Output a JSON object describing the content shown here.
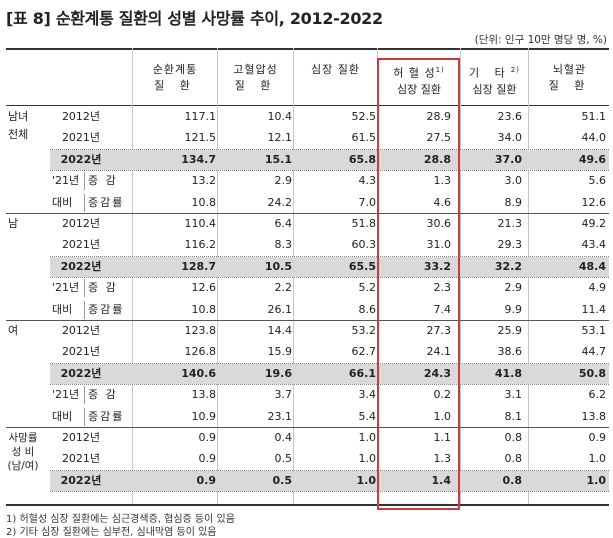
{
  "title": "[표 8] 순환계통 질환의 성별 사망률 추이, 2012-2022",
  "unit": "(단위: 인구 10만 명당 명, %)",
  "headers": [
    {
      "line1": "순환계통",
      "line2": "질 환",
      "sup": ""
    },
    {
      "line1": "고혈압성",
      "line2": "질 환",
      "sup": ""
    },
    {
      "line1": "심장 질환",
      "line2": "",
      "sup": ""
    },
    {
      "line1": "허 혈 성",
      "line2": "심장 질환",
      "sup": "1)"
    },
    {
      "line1": "기 타",
      "line2": "심장 질환",
      "sup": "2)"
    },
    {
      "line1": "뇌혈관",
      "line2": "질 환",
      "sup": ""
    }
  ],
  "sections": [
    {
      "group": "남녀 전체",
      "group_l1": "남녀",
      "group_l2": "전체",
      "rows": [
        {
          "label": "2012년",
          "values": [
            "117.1",
            "10.4",
            "52.5",
            "28.9",
            "23.6",
            "51.1"
          ]
        },
        {
          "label": "2021년",
          "values": [
            "121.5",
            "12.1",
            "61.5",
            "27.5",
            "34.0",
            "44.0"
          ]
        },
        {
          "label": "2022년",
          "values": [
            "134.7",
            "15.1",
            "65.8",
            "28.8",
            "37.0",
            "49.6"
          ]
        },
        {
          "label": "증 감",
          "values": [
            "13.2",
            "2.9",
            "4.3",
            "1.3",
            "3.0",
            "5.6"
          ]
        },
        {
          "label": "증감률",
          "values": [
            "10.8",
            "24.2",
            "7.0",
            "4.6",
            "8.9",
            "12.6"
          ]
        }
      ]
    },
    {
      "group": "남",
      "group_l1": "남",
      "group_l2": "",
      "rows": [
        {
          "label": "2012년",
          "values": [
            "110.4",
            "6.4",
            "51.8",
            "30.6",
            "21.3",
            "49.2"
          ]
        },
        {
          "label": "2021년",
          "values": [
            "116.2",
            "8.3",
            "60.3",
            "31.0",
            "29.3",
            "43.4"
          ]
        },
        {
          "label": "2022년",
          "values": [
            "128.7",
            "10.5",
            "65.5",
            "33.2",
            "32.2",
            "48.4"
          ]
        },
        {
          "label": "증 감",
          "values": [
            "12.6",
            "2.2",
            "5.2",
            "2.3",
            "2.9",
            "4.9"
          ]
        },
        {
          "label": "증감률",
          "values": [
            "10.8",
            "26.1",
            "8.6",
            "7.4",
            "9.9",
            "11.4"
          ]
        }
      ]
    },
    {
      "group": "여",
      "group_l1": "여",
      "group_l2": "",
      "rows": [
        {
          "label": "2012년",
          "values": [
            "123.8",
            "14.4",
            "53.2",
            "27.3",
            "25.9",
            "53.1"
          ]
        },
        {
          "label": "2021년",
          "values": [
            "126.8",
            "15.9",
            "62.7",
            "24.1",
            "38.6",
            "44.7"
          ]
        },
        {
          "label": "2022년",
          "values": [
            "140.6",
            "19.6",
            "66.1",
            "24.3",
            "41.8",
            "50.8"
          ]
        },
        {
          "label": "증 감",
          "values": [
            "13.8",
            "3.7",
            "3.4",
            "0.2",
            "3.1",
            "6.2"
          ]
        },
        {
          "label": "증감률",
          "values": [
            "10.9",
            "23.1",
            "5.4",
            "1.0",
            "8.1",
            "13.8"
          ]
        }
      ]
    },
    {
      "group": "사망률 성 비 (남/여)",
      "group_l1": "사망률",
      "group_l2": "성 비",
      "group_l3": "(남/여)",
      "rows": [
        {
          "label": "2012년",
          "values": [
            "0.9",
            "0.4",
            "1.0",
            "1.1",
            "0.8",
            "0.9"
          ]
        },
        {
          "label": "2021년",
          "values": [
            "0.9",
            "0.5",
            "1.0",
            "1.3",
            "0.8",
            "1.0"
          ]
        },
        {
          "label": "2022년",
          "values": [
            "0.9",
            "0.5",
            "1.0",
            "1.4",
            "0.8",
            "1.0"
          ]
        }
      ]
    }
  ],
  "compare_label_1": "'21년",
  "compare_label_2": "대비",
  "footnotes": [
    "1) 허혈성 심장 질환에는 심근경색증, 협심증 등이 있음",
    "2) 기타 심장 질환에는 심부전, 심내막염 등이 있음"
  ],
  "highlight_color": "#d0393f"
}
